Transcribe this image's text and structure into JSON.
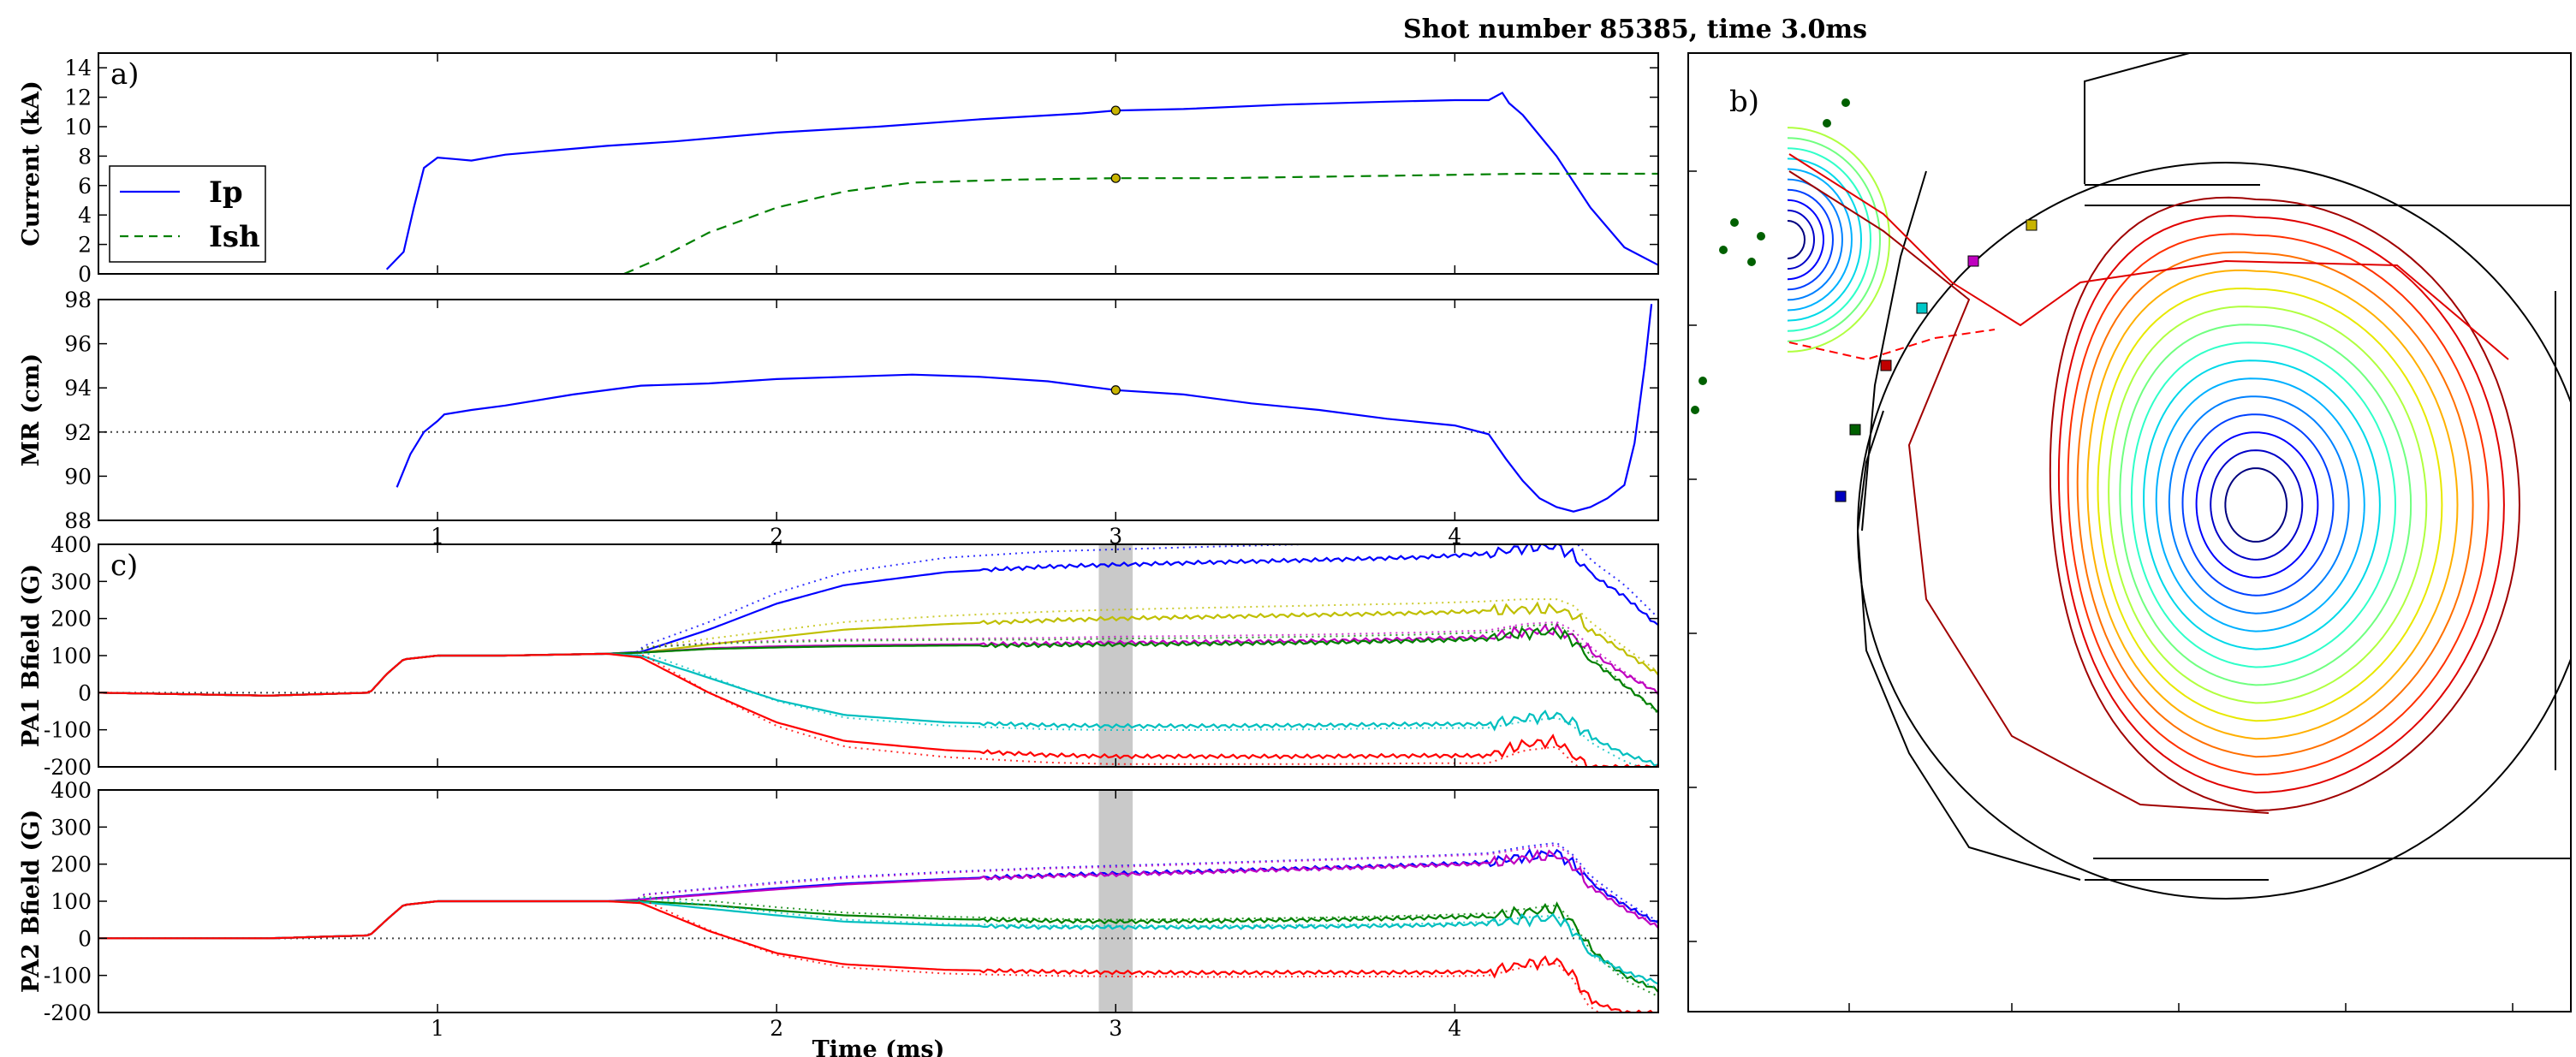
{
  "title": "Shot number 85385, time 3.0ms",
  "chart_data": [
    {
      "id": "current",
      "panel_label": "a)",
      "type": "line",
      "ylabel": "Current (kA)",
      "xlim": [
        0,
        4.6
      ],
      "ylim": [
        0,
        15
      ],
      "yticks": [
        "0",
        "2",
        "4",
        "6",
        "8",
        "10",
        "12",
        "14"
      ],
      "ytick_values": [
        0,
        2,
        4,
        6,
        8,
        10,
        12,
        14
      ],
      "legend": {
        "placement": "left",
        "entries": [
          "Ip",
          "Ish"
        ]
      },
      "series": [
        {
          "name": "Ip",
          "color": "#0000ff",
          "dash": "solid",
          "x": [
            0.85,
            0.9,
            0.93,
            0.96,
            1.0,
            1.05,
            1.1,
            1.2,
            1.35,
            1.5,
            1.7,
            2.0,
            2.3,
            2.6,
            2.9,
            3.0,
            3.2,
            3.5,
            3.8,
            4.0,
            4.1,
            4.14,
            4.16,
            4.2,
            4.3,
            4.4,
            4.5,
            4.6
          ],
          "y": [
            0.3,
            1.5,
            4.5,
            7.2,
            7.9,
            7.8,
            7.7,
            8.1,
            8.4,
            8.7,
            9.0,
            9.6,
            10.0,
            10.5,
            10.9,
            11.1,
            11.2,
            11.5,
            11.7,
            11.8,
            11.8,
            12.3,
            11.6,
            10.8,
            8.0,
            4.5,
            1.8,
            0.6
          ]
        },
        {
          "name": "Ish",
          "color": "#008000",
          "dash": "dashed",
          "x": [
            1.55,
            1.65,
            1.8,
            2.0,
            2.2,
            2.4,
            2.7,
            3.0,
            3.3,
            3.6,
            3.9,
            4.2,
            4.4,
            4.6
          ],
          "y": [
            0.0,
            1.0,
            2.8,
            4.5,
            5.6,
            6.2,
            6.4,
            6.5,
            6.5,
            6.6,
            6.7,
            6.8,
            6.8,
            6.8
          ]
        }
      ],
      "markers": [
        {
          "x": 3.0,
          "y": 11.1,
          "color": "#c8b400"
        },
        {
          "x": 3.0,
          "y": 6.5,
          "color": "#c8b400"
        }
      ]
    },
    {
      "id": "major-radius",
      "type": "line",
      "ylabel": "MR (cm)",
      "xlim": [
        0,
        4.6
      ],
      "ylim": [
        88,
        98
      ],
      "yticks": [
        "88",
        "90",
        "92",
        "94",
        "96",
        "98"
      ],
      "ytick_values": [
        88,
        90,
        92,
        94,
        96,
        98
      ],
      "reference_line": 92,
      "series": [
        {
          "name": "",
          "color": "#0000ff",
          "dash": "solid",
          "x": [
            0.88,
            0.92,
            0.96,
            1.0,
            1.02,
            1.1,
            1.2,
            1.4,
            1.6,
            1.8,
            2.0,
            2.2,
            2.4,
            2.6,
            2.8,
            3.0,
            3.2,
            3.4,
            3.6,
            3.8,
            4.0,
            4.1,
            4.15,
            4.2,
            4.25,
            4.3,
            4.35,
            4.4,
            4.45,
            4.5,
            4.53,
            4.56,
            4.58
          ],
          "y": [
            89.5,
            91.0,
            92.0,
            92.5,
            92.8,
            93.0,
            93.2,
            93.7,
            94.1,
            94.2,
            94.4,
            94.5,
            94.6,
            94.5,
            94.3,
            93.9,
            93.7,
            93.3,
            93.0,
            92.6,
            92.3,
            91.9,
            90.8,
            89.8,
            89.0,
            88.6,
            88.4,
            88.6,
            89.0,
            89.6,
            91.5,
            95.0,
            97.8
          ]
        }
      ],
      "markers": [
        {
          "x": 3.0,
          "y": 93.9,
          "color": "#c8b400"
        }
      ]
    },
    {
      "id": "pa1",
      "panel_label": "c)",
      "type": "line",
      "ylabel": "PA1  Bfield (G)",
      "xlim": [
        0,
        4.6
      ],
      "ylim": [
        -200,
        400
      ],
      "yticks": [
        "-200",
        "-100",
        "0",
        "100",
        "200",
        "300",
        "400"
      ],
      "ytick_values": [
        -200,
        -100,
        0,
        100,
        200,
        300,
        400
      ],
      "reference_line": 0,
      "highlight_band": [
        2.95,
        3.05
      ],
      "series_x": [
        0,
        0.5,
        0.8,
        0.85,
        0.9,
        1.0,
        1.2,
        1.5,
        1.6,
        1.8,
        2.0,
        2.2,
        2.5,
        2.8,
        3.0,
        3.3,
        3.6,
        3.9,
        4.1,
        4.2,
        4.3,
        4.35,
        4.4,
        4.5,
        4.6
      ],
      "series": [
        {
          "name": "",
          "color": "#0000ff",
          "y": [
            0,
            -8,
            0,
            50,
            90,
            100,
            100,
            105,
            110,
            170,
            240,
            290,
            325,
            340,
            345,
            352,
            358,
            365,
            375,
            390,
            395,
            370,
            320,
            260,
            180
          ]
        },
        {
          "name": "",
          "color": "#bfbf00",
          "y": [
            0,
            -8,
            0,
            50,
            90,
            100,
            100,
            105,
            108,
            130,
            150,
            170,
            185,
            195,
            200,
            205,
            210,
            215,
            220,
            225,
            225,
            210,
            170,
            110,
            50
          ]
        },
        {
          "name": "",
          "color": "#bf00bf",
          "y": [
            0,
            -8,
            0,
            50,
            90,
            100,
            100,
            105,
            108,
            120,
            125,
            128,
            130,
            132,
            135,
            137,
            140,
            145,
            150,
            165,
            170,
            150,
            110,
            50,
            0
          ]
        },
        {
          "name": "",
          "color": "#008000",
          "y": [
            0,
            -8,
            0,
            50,
            90,
            100,
            100,
            105,
            108,
            118,
            122,
            125,
            127,
            128,
            130,
            132,
            135,
            140,
            145,
            160,
            165,
            140,
            90,
            20,
            -50
          ]
        },
        {
          "name": "",
          "color": "#00bfbf",
          "y": [
            0,
            -8,
            0,
            50,
            90,
            100,
            100,
            105,
            100,
            40,
            -20,
            -60,
            -80,
            -88,
            -90,
            -90,
            -88,
            -85,
            -85,
            -70,
            -60,
            -80,
            -120,
            -165,
            -195
          ]
        },
        {
          "name": "",
          "color": "#ff0000",
          "y": [
            0,
            -8,
            0,
            50,
            90,
            100,
            100,
            105,
            95,
            0,
            -80,
            -130,
            -155,
            -168,
            -172,
            -172,
            -172,
            -170,
            -170,
            -140,
            -130,
            -170,
            -200,
            -200,
            -200
          ]
        }
      ]
    },
    {
      "id": "pa2",
      "type": "line",
      "ylabel": "PA2  Bfield (G)",
      "xlabel": "Time (ms)",
      "xlim": [
        0,
        4.6
      ],
      "ylim": [
        -200,
        400
      ],
      "yticks": [
        "-200",
        "-100",
        "0",
        "100",
        "200",
        "300",
        "400"
      ],
      "ytick_values": [
        -200,
        -100,
        0,
        100,
        200,
        300,
        400
      ],
      "xticks": [
        "1",
        "2",
        "3",
        "4"
      ],
      "xtick_values": [
        1,
        2,
        3,
        4
      ],
      "reference_line": 0,
      "highlight_band": [
        2.95,
        3.05
      ],
      "series_x": [
        0,
        0.5,
        0.8,
        0.85,
        0.9,
        1.0,
        1.2,
        1.5,
        1.6,
        1.8,
        2.0,
        2.2,
        2.5,
        2.8,
        3.0,
        3.3,
        3.6,
        3.9,
        4.1,
        4.2,
        4.3,
        4.35,
        4.4,
        4.5,
        4.6
      ],
      "series": [
        {
          "name": "",
          "color": "#0000ff",
          "y": [
            0,
            0,
            8,
            50,
            90,
            100,
            100,
            100,
            105,
            120,
            135,
            148,
            160,
            170,
            175,
            182,
            190,
            198,
            205,
            220,
            230,
            200,
            150,
            90,
            40
          ]
        },
        {
          "name": "",
          "color": "#bf00bf",
          "y": [
            0,
            0,
            8,
            50,
            90,
            100,
            100,
            100,
            104,
            118,
            132,
            145,
            158,
            168,
            172,
            180,
            188,
            196,
            202,
            215,
            225,
            195,
            140,
            80,
            30
          ]
        },
        {
          "name": "",
          "color": "#008000",
          "y": [
            0,
            0,
            8,
            50,
            90,
            100,
            100,
            100,
            100,
            90,
            75,
            62,
            52,
            47,
            45,
            47,
            50,
            55,
            60,
            70,
            80,
            40,
            -30,
            -100,
            -140
          ]
        },
        {
          "name": "",
          "color": "#00bfbf",
          "y": [
            0,
            0,
            8,
            50,
            90,
            100,
            100,
            100,
            98,
            80,
            62,
            45,
            35,
            30,
            30,
            30,
            32,
            35,
            40,
            50,
            55,
            20,
            -40,
            -90,
            -120
          ]
        },
        {
          "name": "",
          "color": "#ff0000",
          "y": [
            0,
            0,
            8,
            50,
            90,
            100,
            100,
            100,
            95,
            20,
            -40,
            -70,
            -85,
            -90,
            -92,
            -93,
            -92,
            -92,
            -90,
            -70,
            -60,
            -100,
            -170,
            -200,
            -200
          ]
        }
      ]
    },
    {
      "id": "flux-surfaces",
      "panel_label": "b)",
      "type": "contour",
      "contour_count": 16,
      "contour_colors": [
        "#00007f",
        "#0000c8",
        "#0000ff",
        "#0040ff",
        "#0080ff",
        "#00b0ff",
        "#00d8e8",
        "#30ffc8",
        "#70ff80",
        "#b0ff40",
        "#e8e800",
        "#ffb000",
        "#ff7000",
        "#ff3000",
        "#e00000",
        "#a00000"
      ],
      "separatrix_color": "#ff0000",
      "probe_colors": [
        "#0000c0",
        "#006000",
        "#c00000",
        "#00c8c8",
        "#c000c0",
        "#c8b400"
      ],
      "outside_dots_color": "#006000"
    }
  ]
}
